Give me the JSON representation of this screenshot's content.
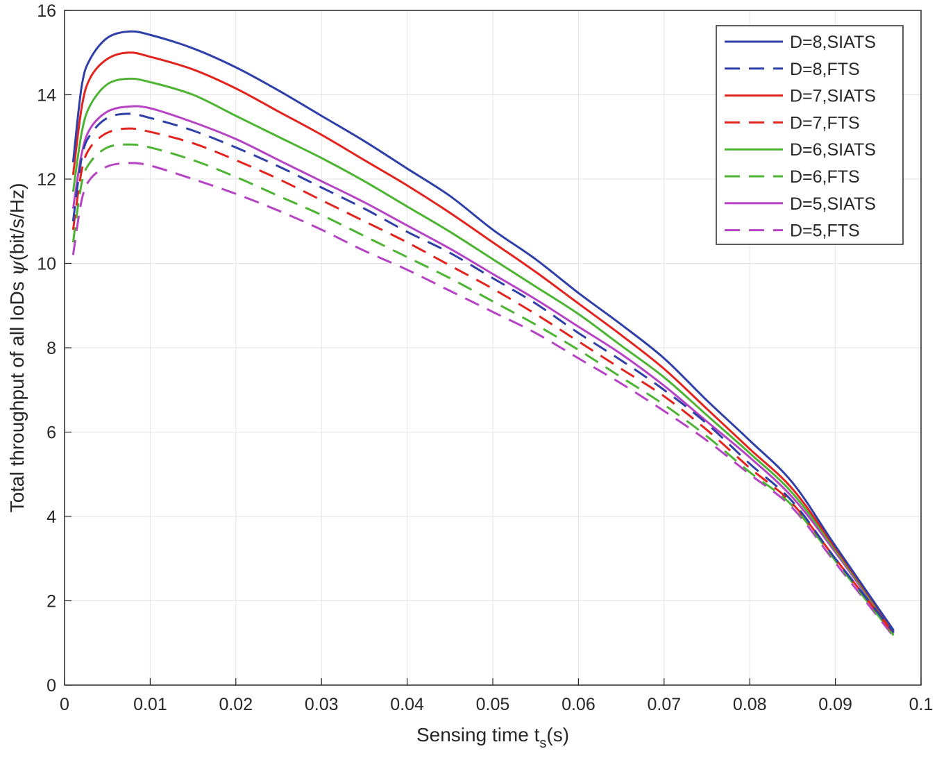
{
  "chart_data": {
    "type": "line",
    "title": "",
    "xlabel": {
      "main": "Sensing time t",
      "sub": "s",
      "suffix": "(s)"
    },
    "ylabel": {
      "pre": "Total throughput of all IoDs ",
      "greek": "ψ",
      "post": "(bit/s/Hz)"
    },
    "xlim": [
      0,
      0.1
    ],
    "ylim": [
      0,
      16
    ],
    "xticks": [
      0,
      0.01,
      0.02,
      0.03,
      0.04,
      0.05,
      0.06,
      0.07,
      0.08,
      0.09,
      0.1
    ],
    "xtick_labels": [
      "0",
      "0.01",
      "0.02",
      "0.03",
      "0.04",
      "0.05",
      "0.06",
      "0.07",
      "0.08",
      "0.09",
      "0.1"
    ],
    "yticks": [
      0,
      2,
      4,
      6,
      8,
      10,
      12,
      14,
      16
    ],
    "ytick_labels": [
      "0",
      "2",
      "4",
      "6",
      "8",
      "10",
      "12",
      "14",
      "16"
    ],
    "grid": true,
    "legend_position": "top-right",
    "x": [
      0.001,
      0.002,
      0.003,
      0.005,
      0.0075,
      0.01,
      0.015,
      0.02,
      0.025,
      0.03,
      0.035,
      0.04,
      0.045,
      0.05,
      0.055,
      0.06,
      0.065,
      0.07,
      0.075,
      0.08,
      0.085,
      0.09,
      0.0968
    ],
    "series": [
      {
        "name": "D=8,SIATS",
        "color": "#2f3fa8",
        "dash": "solid",
        "values": [
          12.4,
          14.2,
          14.85,
          15.35,
          15.5,
          15.42,
          15.1,
          14.65,
          14.1,
          13.5,
          12.9,
          12.25,
          11.6,
          10.8,
          10.1,
          9.3,
          8.55,
          7.75,
          6.75,
          5.8,
          4.8,
          3.3,
          1.3
        ]
      },
      {
        "name": "D=8,FTS",
        "color": "#2f3fa8",
        "dash": "dashed",
        "values": [
          11.0,
          12.5,
          13.05,
          13.45,
          13.55,
          13.45,
          13.15,
          12.75,
          12.3,
          11.8,
          11.3,
          10.75,
          10.25,
          9.65,
          9.05,
          8.35,
          7.7,
          7.0,
          6.2,
          5.25,
          4.35,
          3.0,
          1.25
        ]
      },
      {
        "name": "D=7,SIATS",
        "color": "#e3231e",
        "dash": "solid",
        "values": [
          12.1,
          13.7,
          14.4,
          14.85,
          15.0,
          14.9,
          14.6,
          14.15,
          13.6,
          13.05,
          12.45,
          11.85,
          11.2,
          10.5,
          9.8,
          9.05,
          8.3,
          7.5,
          6.55,
          5.6,
          4.65,
          3.25,
          1.28
        ]
      },
      {
        "name": "D=7,FTS",
        "color": "#e3231e",
        "dash": "dashed",
        "values": [
          10.8,
          12.2,
          12.75,
          13.1,
          13.2,
          13.12,
          12.85,
          12.45,
          12.0,
          11.5,
          11.0,
          10.5,
          9.95,
          9.4,
          8.8,
          8.15,
          7.5,
          6.85,
          6.05,
          5.15,
          4.3,
          3.0,
          1.22
        ]
      },
      {
        "name": "D=6,SIATS",
        "color": "#4db332",
        "dash": "solid",
        "values": [
          11.7,
          13.1,
          13.75,
          14.25,
          14.38,
          14.3,
          14.0,
          13.5,
          13.0,
          12.5,
          11.95,
          11.35,
          10.75,
          10.1,
          9.45,
          8.8,
          8.05,
          7.3,
          6.4,
          5.5,
          4.55,
          3.2,
          1.25
        ]
      },
      {
        "name": "D=6,FTS",
        "color": "#4db332",
        "dash": "dashed",
        "values": [
          10.5,
          11.9,
          12.4,
          12.75,
          12.82,
          12.75,
          12.45,
          12.05,
          11.6,
          11.15,
          10.65,
          10.15,
          9.65,
          9.1,
          8.55,
          7.95,
          7.3,
          6.65,
          5.9,
          5.05,
          4.25,
          2.95,
          1.18
        ]
      },
      {
        "name": "D=5,SIATS",
        "color": "#b543c4",
        "dash": "solid",
        "values": [
          11.3,
          12.6,
          13.2,
          13.6,
          13.72,
          13.68,
          13.35,
          12.95,
          12.45,
          11.95,
          11.45,
          10.9,
          10.35,
          9.75,
          9.15,
          8.5,
          7.85,
          7.1,
          6.25,
          5.4,
          4.45,
          3.15,
          1.22
        ]
      },
      {
        "name": "D=5,FTS",
        "color": "#b543c4",
        "dash": "dashed",
        "values": [
          10.2,
          11.5,
          12.0,
          12.3,
          12.38,
          12.32,
          12.0,
          11.65,
          11.25,
          10.8,
          10.3,
          9.85,
          9.35,
          8.85,
          8.35,
          7.75,
          7.15,
          6.5,
          5.8,
          5.0,
          4.2,
          2.9,
          1.15
        ]
      }
    ]
  }
}
